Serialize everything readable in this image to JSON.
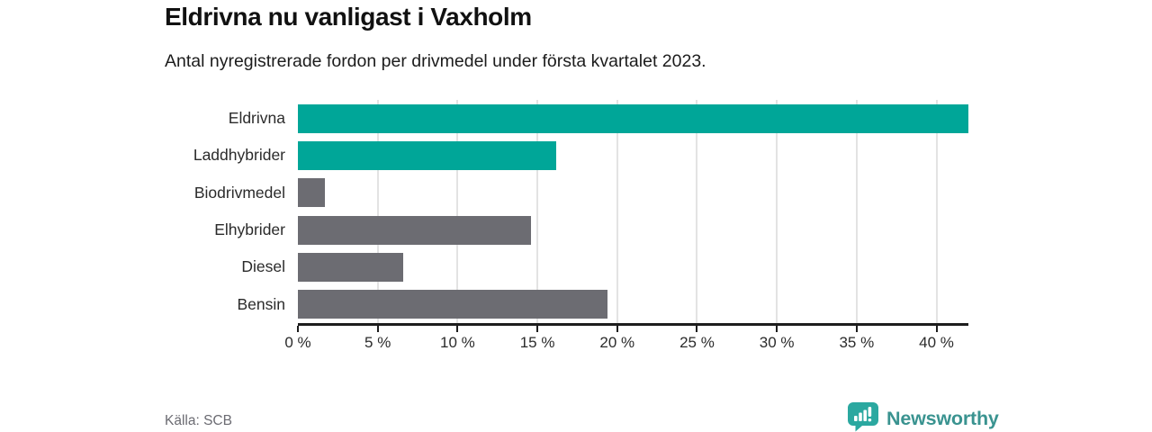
{
  "header": {
    "title": "Eldrivna nu vanligast i Vaxholm",
    "subtitle": "Antal nyregistrerade fordon per drivmedel under första kvartalet 2023."
  },
  "chart_data": {
    "type": "bar",
    "orientation": "horizontal",
    "title": "Eldrivna nu vanligast i Vaxholm",
    "subtitle": "Antal nyregistrerade fordon per drivmedel under första kvartalet 2023.",
    "categories": [
      "Eldrivna",
      "Laddhybrider",
      "Biodrivmedel",
      "Elhybrider",
      "Diesel",
      "Bensin"
    ],
    "values": [
      42,
      16.2,
      1.7,
      14.6,
      6.6,
      19.4
    ],
    "unit": "%",
    "bar_colors": [
      "#00a698",
      "#00a698",
      "#6c6c72",
      "#6c6c72",
      "#6c6c72",
      "#6c6c72"
    ],
    "xlim": [
      0,
      42
    ],
    "x_ticks": [
      0,
      5,
      10,
      15,
      20,
      25,
      30,
      35,
      40
    ],
    "x_tick_labels": [
      "0 %",
      "5 %",
      "10 %",
      "15 %",
      "20 %",
      "25 %",
      "30 %",
      "35 %",
      "40 %"
    ],
    "xlabel": "",
    "ylabel": "",
    "grid": true,
    "legend": false
  },
  "footer": {
    "source": "Källa: SCB",
    "brand": "Newsworthy"
  },
  "colors": {
    "accent_teal": "#00a698",
    "bar_gray": "#6c6c72",
    "brand_teal": "#3a9390",
    "gridline": "#e3e3e3",
    "axis": "#1d1d1d"
  }
}
